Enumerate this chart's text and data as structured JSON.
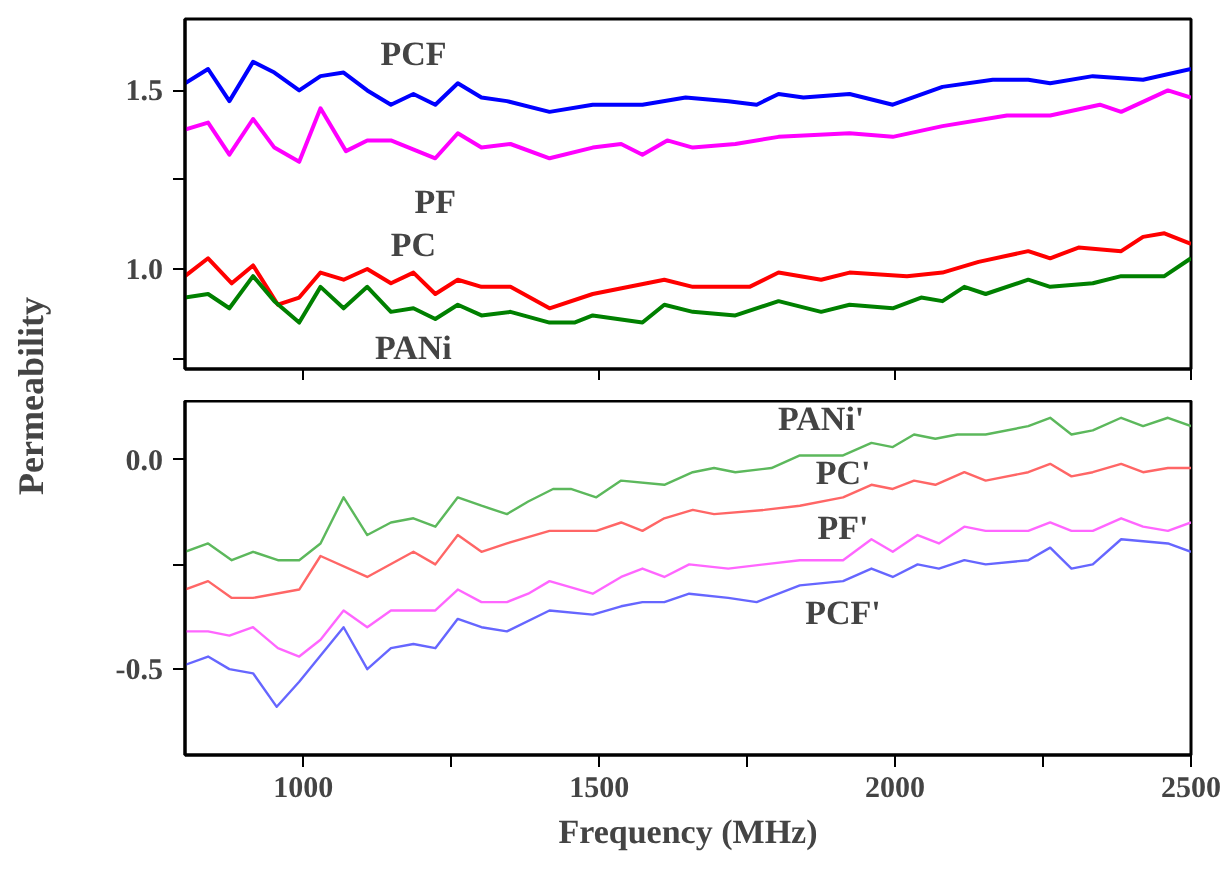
{
  "chart_data": [
    {
      "type": "line",
      "ylabel": "Permeability",
      "xlim": [
        800,
        2500
      ],
      "ylim": [
        0.72,
        1.7
      ],
      "yticks": [
        {
          "value": 0.75,
          "label": null
        },
        {
          "value": 1,
          "label": "1.0"
        },
        {
          "value": 1.25,
          "label": null
        },
        1.5
      ],
      "xticks": [
        {
          "value": 1000,
          "label": null
        },
        {
          "value": 1500,
          "label": null
        },
        {
          "value": 2000,
          "label": null
        },
        {
          "value": 2500,
          "label": null
        }
      ],
      "tick_labels": "y",
      "grid": false,
      "legend": false,
      "series": [
        {
          "name": "PCF",
          "color": "#0000ff",
          "x": [
            800,
            839,
            875,
            915,
            951,
            993,
            1029,
            1068,
            1108,
            1148,
            1186,
            1223,
            1261,
            1301,
            1344,
            1416,
            1489,
            1573,
            1646,
            1718,
            1766,
            1803,
            1845,
            1923,
            1996,
            2080,
            2165,
            2225,
            2262,
            2334,
            2419,
            2500
          ],
          "values": [
            1.52,
            1.56,
            1.47,
            1.58,
            1.55,
            1.5,
            1.54,
            1.55,
            1.5,
            1.46,
            1.49,
            1.46,
            1.52,
            1.48,
            1.47,
            1.44,
            1.46,
            1.46,
            1.48,
            1.47,
            1.46,
            1.49,
            1.48,
            1.49,
            1.46,
            1.51,
            1.53,
            1.53,
            1.52,
            1.54,
            1.53,
            1.56
          ]
        },
        {
          "name": "PF",
          "color": "#ff00ff",
          "x": [
            800,
            839,
            875,
            915,
            951,
            993,
            1029,
            1072,
            1108,
            1148,
            1223,
            1261,
            1301,
            1350,
            1416,
            1489,
            1537,
            1573,
            1615,
            1658,
            1730,
            1803,
            1923,
            1996,
            2080,
            2189,
            2262,
            2346,
            2382,
            2461,
            2500
          ],
          "values": [
            1.39,
            1.41,
            1.32,
            1.42,
            1.34,
            1.3,
            1.45,
            1.33,
            1.36,
            1.36,
            1.31,
            1.38,
            1.34,
            1.35,
            1.31,
            1.34,
            1.35,
            1.32,
            1.36,
            1.34,
            1.35,
            1.37,
            1.38,
            1.37,
            1.4,
            1.43,
            1.43,
            1.46,
            1.44,
            1.5,
            1.48
          ]
        },
        {
          "name": "PC",
          "color": "#ff0000",
          "x": [
            800,
            839,
            879,
            915,
            957,
            993,
            1029,
            1068,
            1108,
            1148,
            1186,
            1223,
            1261,
            1301,
            1350,
            1416,
            1489,
            1610,
            1658,
            1754,
            1803,
            1875,
            1923,
            2020,
            2080,
            2141,
            2225,
            2262,
            2310,
            2382,
            2419,
            2455,
            2500
          ],
          "values": [
            0.98,
            1.03,
            0.96,
            1.01,
            0.9,
            0.92,
            0.99,
            0.97,
            1.0,
            0.96,
            0.99,
            0.93,
            0.97,
            0.95,
            0.95,
            0.89,
            0.93,
            0.97,
            0.95,
            0.95,
            0.99,
            0.97,
            0.99,
            0.98,
            0.99,
            1.02,
            1.05,
            1.03,
            1.06,
            1.05,
            1.09,
            1.1,
            1.07
          ]
        },
        {
          "name": "PANi",
          "color": "#008000",
          "x": [
            800,
            839,
            875,
            915,
            951,
            993,
            1029,
            1068,
            1108,
            1148,
            1186,
            1223,
            1261,
            1301,
            1350,
            1416,
            1458,
            1489,
            1573,
            1610,
            1658,
            1730,
            1803,
            1875,
            1923,
            1996,
            2044,
            2080,
            2117,
            2153,
            2225,
            2262,
            2334,
            2382,
            2455,
            2500
          ],
          "values": [
            0.92,
            0.93,
            0.89,
            0.98,
            0.91,
            0.85,
            0.95,
            0.89,
            0.95,
            0.88,
            0.89,
            0.86,
            0.9,
            0.87,
            0.88,
            0.85,
            0.85,
            0.87,
            0.85,
            0.9,
            0.88,
            0.87,
            0.91,
            0.88,
            0.9,
            0.89,
            0.92,
            0.91,
            0.95,
            0.93,
            0.97,
            0.95,
            0.96,
            0.98,
            0.98,
            1.03
          ]
        }
      ]
    },
    {
      "type": "line",
      "xlabel": "Frequency (MHz)",
      "xlim": [
        800,
        2500
      ],
      "ylim": [
        -0.705,
        0.14
      ],
      "yticks": [
        {
          "value": -0.5,
          "label": "-0.5"
        },
        {
          "value": -0.25,
          "label": null
        },
        {
          "value": 0,
          "label": "0.0"
        }
      ],
      "xticks": [
        1000,
        {
          "value": 1250,
          "label": null
        },
        1500,
        {
          "value": 1750,
          "label": null
        },
        2000,
        {
          "value": 2250,
          "label": null
        },
        2500
      ],
      "grid": false,
      "legend": false,
      "series": [
        {
          "name": "PANi'",
          "color": "#5cb85c",
          "x": [
            800,
            839,
            879,
            915,
            957,
            993,
            1029,
            1068,
            1108,
            1148,
            1186,
            1223,
            1261,
            1301,
            1344,
            1380,
            1422,
            1452,
            1495,
            1537,
            1610,
            1658,
            1694,
            1730,
            1791,
            1839,
            1875,
            1912,
            1960,
            1996,
            2032,
            2068,
            2105,
            2153,
            2225,
            2262,
            2298,
            2334,
            2382,
            2419,
            2461,
            2500
          ],
          "values": [
            -0.22,
            -0.2,
            -0.24,
            -0.22,
            -0.24,
            -0.24,
            -0.2,
            -0.09,
            -0.18,
            -0.15,
            -0.14,
            -0.16,
            -0.09,
            -0.11,
            -0.13,
            -0.1,
            -0.07,
            -0.07,
            -0.09,
            -0.05,
            -0.06,
            -0.03,
            -0.02,
            -0.03,
            -0.02,
            0.01,
            0.01,
            0.01,
            0.04,
            0.03,
            0.06,
            0.05,
            0.06,
            0.06,
            0.08,
            0.1,
            0.06,
            0.07,
            0.1,
            0.08,
            0.1,
            0.08
          ]
        },
        {
          "name": "PC'",
          "color": "#ff6666",
          "x": [
            800,
            839,
            879,
            915,
            993,
            1029,
            1108,
            1186,
            1223,
            1261,
            1301,
            1344,
            1416,
            1495,
            1537,
            1573,
            1610,
            1658,
            1694,
            1779,
            1839,
            1912,
            1960,
            1996,
            2032,
            2068,
            2117,
            2153,
            2225,
            2262,
            2298,
            2334,
            2382,
            2419,
            2461,
            2500
          ],
          "values": [
            -0.31,
            -0.29,
            -0.33,
            -0.33,
            -0.31,
            -0.23,
            -0.28,
            -0.22,
            -0.25,
            -0.18,
            -0.22,
            -0.2,
            -0.17,
            -0.17,
            -0.15,
            -0.17,
            -0.14,
            -0.12,
            -0.13,
            -0.12,
            -0.11,
            -0.09,
            -0.06,
            -0.07,
            -0.05,
            -0.06,
            -0.03,
            -0.05,
            -0.03,
            -0.01,
            -0.04,
            -0.03,
            -0.01,
            -0.03,
            -0.02,
            -0.02
          ]
        },
        {
          "name": "PF'",
          "color": "#ff66ff",
          "x": [
            800,
            839,
            875,
            915,
            957,
            993,
            1029,
            1068,
            1108,
            1148,
            1223,
            1261,
            1301,
            1344,
            1380,
            1416,
            1489,
            1537,
            1573,
            1610,
            1652,
            1718,
            1839,
            1912,
            1960,
            1996,
            2038,
            2074,
            2117,
            2153,
            2225,
            2262,
            2298,
            2334,
            2382,
            2419,
            2461,
            2500
          ],
          "values": [
            -0.41,
            -0.41,
            -0.42,
            -0.4,
            -0.45,
            -0.47,
            -0.43,
            -0.36,
            -0.4,
            -0.36,
            -0.36,
            -0.31,
            -0.34,
            -0.34,
            -0.32,
            -0.29,
            -0.32,
            -0.28,
            -0.26,
            -0.28,
            -0.25,
            -0.26,
            -0.24,
            -0.24,
            -0.19,
            -0.22,
            -0.18,
            -0.2,
            -0.16,
            -0.17,
            -0.17,
            -0.15,
            -0.17,
            -0.17,
            -0.14,
            -0.16,
            -0.17,
            -0.15
          ]
        },
        {
          "name": "PCF'",
          "color": "#6666ff",
          "x": [
            800,
            839,
            875,
            915,
            955,
            993,
            1068,
            1108,
            1148,
            1186,
            1223,
            1261,
            1301,
            1344,
            1416,
            1489,
            1537,
            1573,
            1610,
            1652,
            1718,
            1766,
            1839,
            1912,
            1960,
            1996,
            2038,
            2074,
            2117,
            2153,
            2225,
            2262,
            2298,
            2334,
            2382,
            2461,
            2500
          ],
          "values": [
            -0.49,
            -0.47,
            -0.5,
            -0.51,
            -0.59,
            -0.53,
            -0.4,
            -0.5,
            -0.45,
            -0.44,
            -0.45,
            -0.38,
            -0.4,
            -0.41,
            -0.36,
            -0.37,
            -0.35,
            -0.34,
            -0.34,
            -0.32,
            -0.33,
            -0.34,
            -0.3,
            -0.29,
            -0.26,
            -0.28,
            -0.25,
            -0.26,
            -0.24,
            -0.25,
            -0.24,
            -0.21,
            -0.26,
            -0.25,
            -0.19,
            -0.2,
            -0.22
          ]
        }
      ]
    }
  ]
}
